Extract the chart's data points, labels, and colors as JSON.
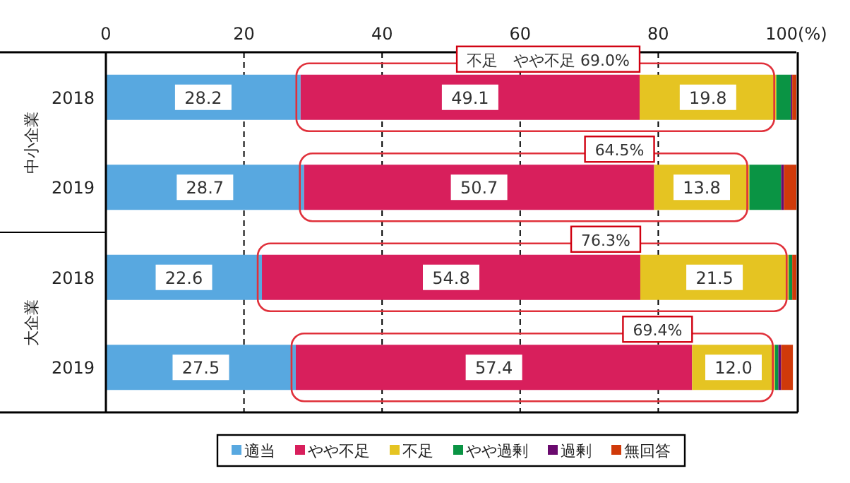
{
  "chart_data": {
    "type": "bar",
    "orientation": "horizontal",
    "stacked": true,
    "categories": [
      "2018",
      "2019",
      "2018",
      "2019"
    ],
    "series": [
      {
        "name": "適当",
        "color": "#58a8e0",
        "values": [
          28.2,
          28.7,
          22.6,
          27.5
        ],
        "value_labels": [
          "28.2",
          "28.7",
          "22.6",
          "27.5"
        ]
      },
      {
        "name": "やや不足",
        "color": "#d81f5c",
        "values": [
          49.1,
          50.7,
          54.8,
          57.4
        ],
        "value_labels": [
          "49.1",
          "50.7",
          "54.8",
          "57.4"
        ]
      },
      {
        "name": "不足",
        "color": "#e5c422",
        "values": [
          19.8,
          13.8,
          21.5,
          12.0
        ],
        "value_labels": [
          "19.8",
          "13.8",
          "21.5",
          "12.0"
        ]
      },
      {
        "name": "やや過剰",
        "color": "#0a9444",
        "values": [
          2.1,
          4.6,
          0.5,
          0.5
        ]
      },
      {
        "name": "過剰",
        "color": "#6a0a6e",
        "values": [
          0.2,
          0.4,
          0.0,
          0.4
        ]
      },
      {
        "name": "無回答",
        "color": "#d03a0a",
        "values": [
          0.6,
          1.8,
          0.6,
          1.7
        ]
      }
    ],
    "xlim": [
      0,
      100
    ],
    "xticks": [
      0,
      20,
      40,
      60,
      80,
      {
        "value": 100,
        "label": "100(%)"
      }
    ],
    "grid": "x",
    "legend": "bottom",
    "annotations": [
      "中小企業",
      "大企業",
      "不足　やや不足 69.0%",
      "64.5%",
      "76.3%",
      "69.4%"
    ]
  }
}
